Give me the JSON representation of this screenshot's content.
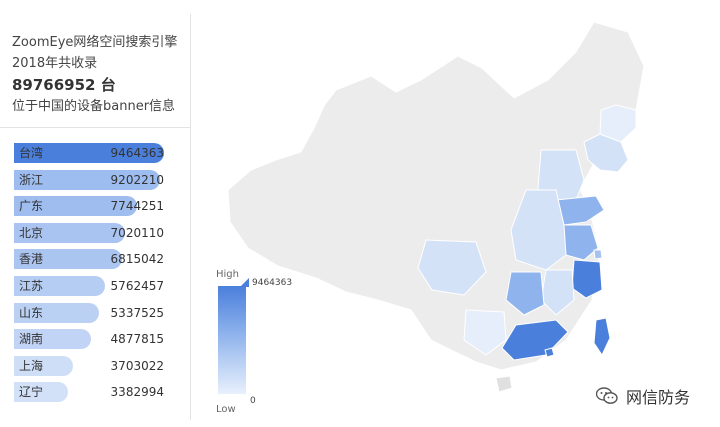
{
  "summary": {
    "line1": "ZoomEye网络空间搜索引擎",
    "line2": "2018年共收录",
    "total": "89766952 台",
    "line4": "位于中国的设备banner信息"
  },
  "rankings": [
    {
      "name": "台湾",
      "value": "9464363",
      "count": 9464363
    },
    {
      "name": "浙江",
      "value": "9202210",
      "count": 9202210
    },
    {
      "name": "广东",
      "value": "7744251",
      "count": 7744251
    },
    {
      "name": "北京",
      "value": "7020110",
      "count": 7020110
    },
    {
      "name": "香港",
      "value": "6815042",
      "count": 6815042
    },
    {
      "name": "江苏",
      "value": "5762457",
      "count": 5762457
    },
    {
      "name": "山东",
      "value": "5337525",
      "count": 5337525
    },
    {
      "name": "湖南",
      "value": "4877815",
      "count": 4877815
    },
    {
      "name": "上海",
      "value": "3703022",
      "count": 3703022
    },
    {
      "name": "辽宁",
      "value": "3382994",
      "count": 3382994
    }
  ],
  "legend": {
    "high_label": "High",
    "low_label": "Low",
    "max_value": "9464363",
    "min_value": "0"
  },
  "colors": {
    "dark": "#4a7fdc",
    "mid": "#8fb3ec",
    "light": "#d4e2f8",
    "nodata": "#ececec"
  },
  "watermark": {
    "text": "网信防务"
  }
}
